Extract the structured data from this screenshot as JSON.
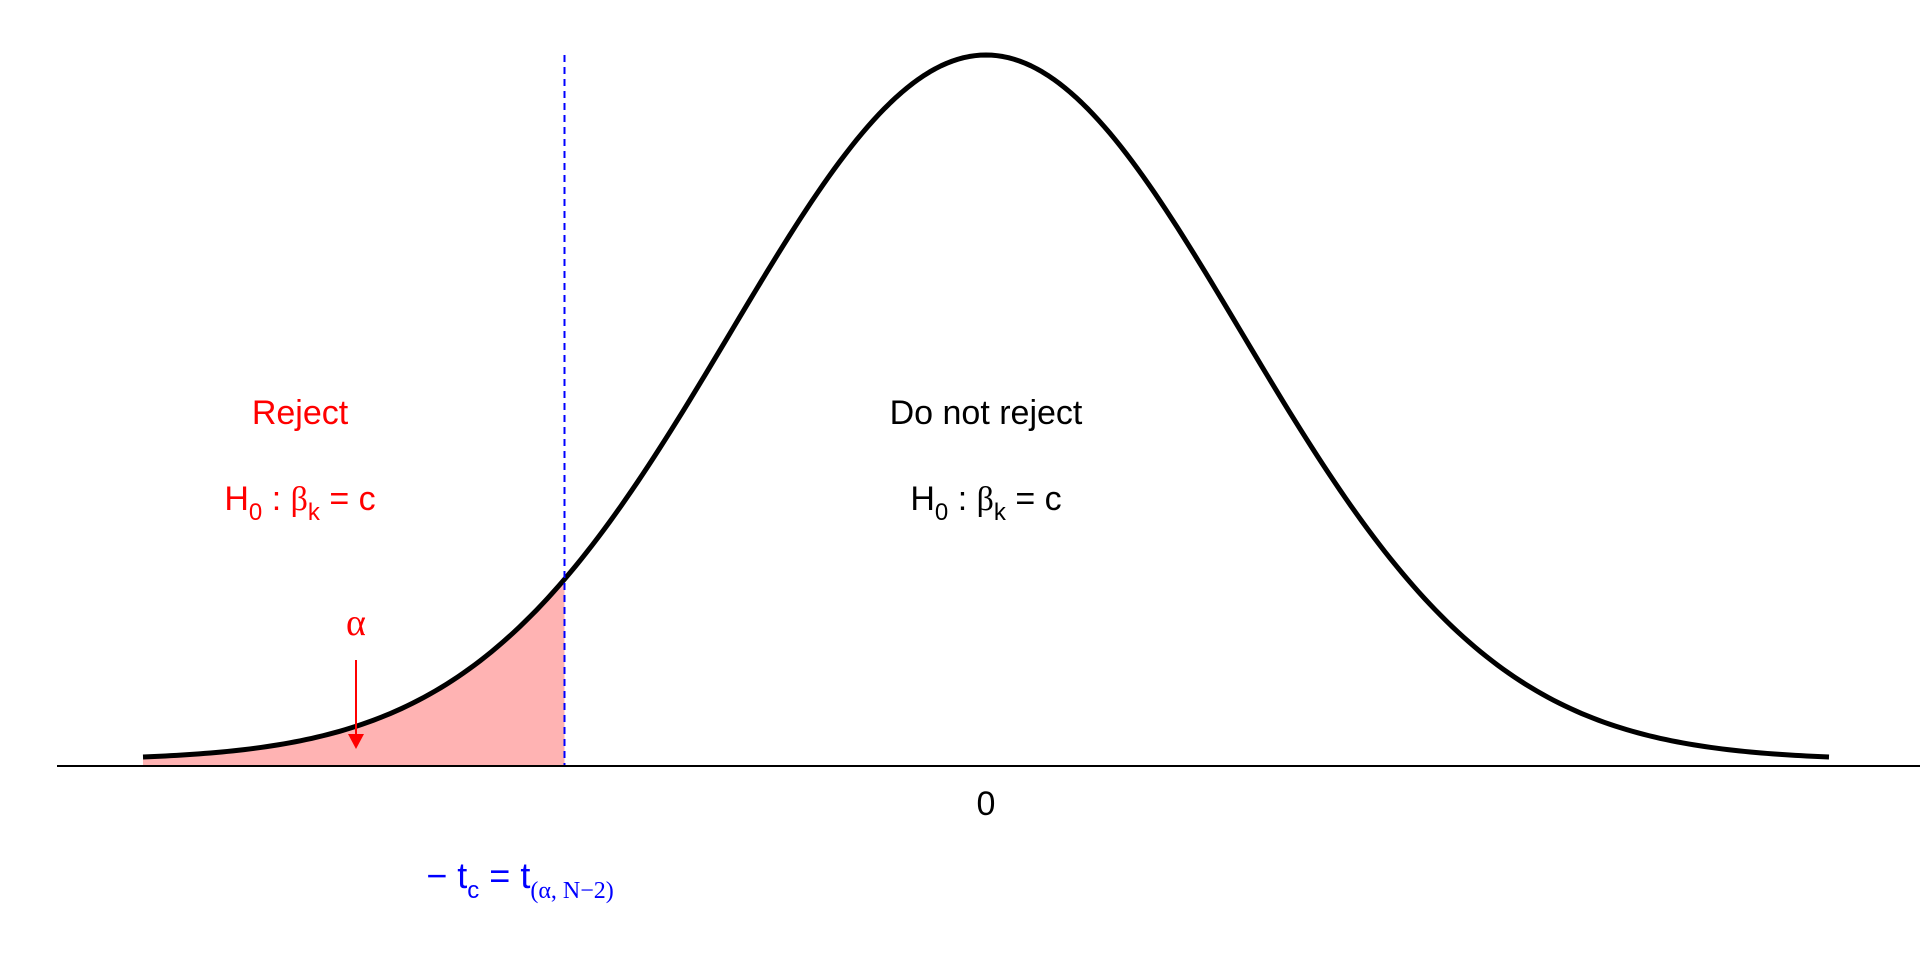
{
  "chart_data": {
    "type": "area",
    "distribution": "t",
    "x_range": [
      -3.3,
      3.3
    ],
    "critical_value": -1.65,
    "curve_color": "#000000",
    "reject_fill_color": "#ffb3b3",
    "reject_color": "#ff0000",
    "critical_line_color": "#0000ff",
    "tick_label": "0",
    "reject_region": {
      "title": "Reject",
      "hypothesis": {
        "h": "H",
        "h_sub": "0",
        "colon": " : ",
        "beta": "β",
        "beta_sub": "k",
        "eq": " = c"
      },
      "alpha_symbol": "α"
    },
    "accept_region": {
      "title": "Do not reject",
      "hypothesis": {
        "h": "H",
        "h_sub": "0",
        "colon": " : ",
        "beta": "β",
        "beta_sub": "k",
        "eq": " = c"
      }
    },
    "critical_label": {
      "minus": "− ",
      "t": "t",
      "t_sub": "c",
      "eq": " = ",
      "t2": "t",
      "t2_sub": "(α, N−2)"
    }
  }
}
